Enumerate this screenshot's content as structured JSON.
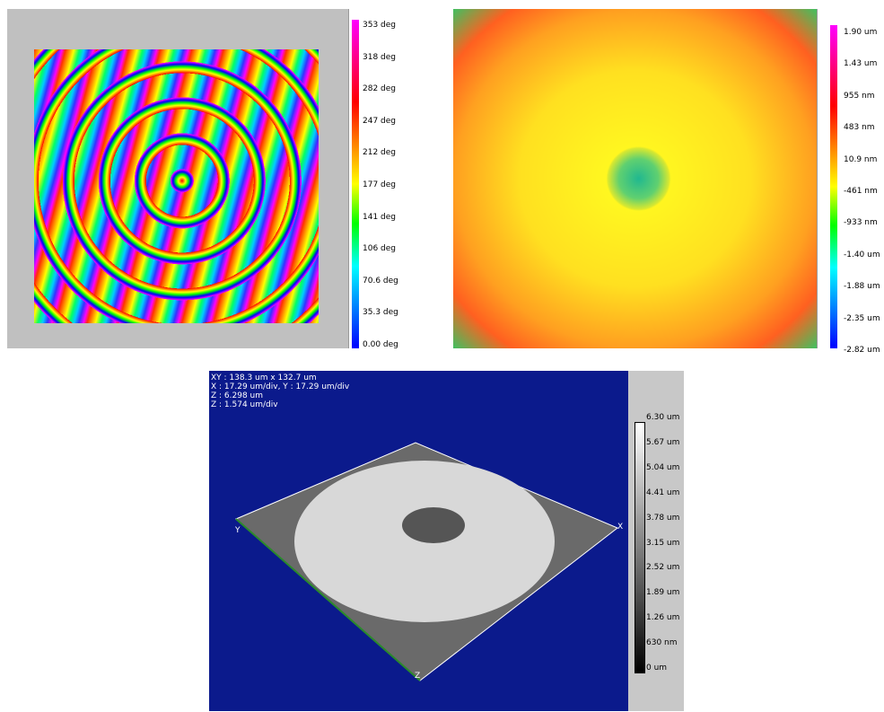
{
  "panels": [
    {
      "scale_labels": [
        "353 deg",
        "318 deg",
        "282 deg",
        "247 deg",
        "212 deg",
        "177 deg",
        "141 deg",
        "106 deg",
        "70.6 deg",
        "35.3 deg",
        "0.00 deg"
      ]
    },
    {
      "scale_labels": [
        "1.90 um",
        "1.43 um",
        "955 nm",
        "483 nm",
        "10.9 nm",
        "-461 nm",
        "-933 nm",
        "-1.40 um",
        "-1.88 um",
        "-2.35 um",
        "-2.82 um"
      ]
    },
    {
      "info": [
        "XY : 138.3 um x 132.7 um",
        "X : 17.29 um/div, Y : 17.29 um/div",
        "Z : 6.298 um",
        "Z : 1.574 um/div"
      ],
      "axes": [
        "Y",
        "X",
        "Z"
      ],
      "scale_labels": [
        "6.30 um",
        "5.67 um",
        "5.04 um",
        "4.41 um",
        "3.78 um",
        "3.15 um",
        "2.52 um",
        "1.89 um",
        "1.26 um",
        "630 nm",
        "0 um"
      ]
    }
  ]
}
